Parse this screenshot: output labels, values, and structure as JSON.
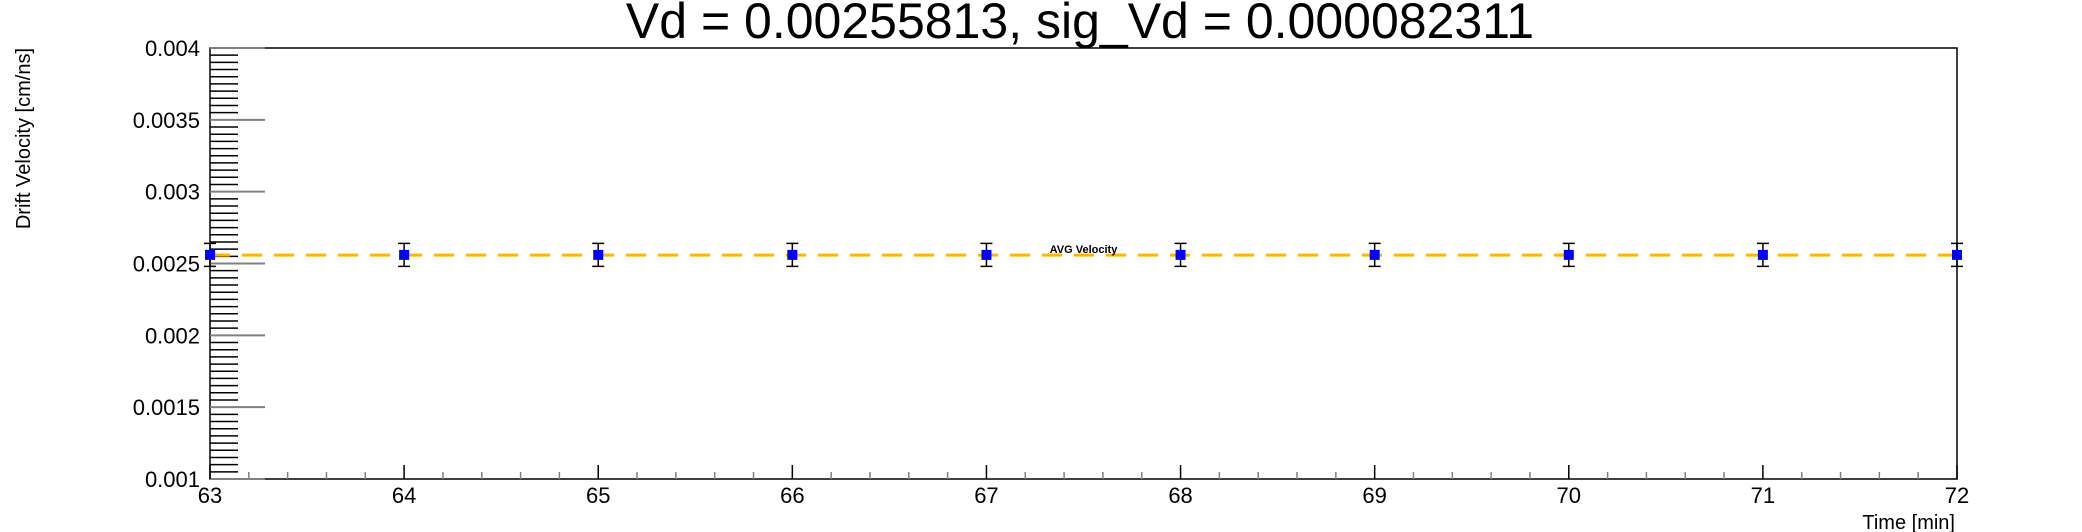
{
  "chart_data": {
    "type": "scatter",
    "title": "Vd = 0.00255813, sig_Vd = 0.000082311",
    "xlabel": "Time [min]",
    "ylabel": "Drift Velocity [cm/ns]",
    "xlim": [
      63,
      72
    ],
    "ylim": [
      0.001,
      0.004
    ],
    "x_ticks": [
      63,
      64,
      65,
      66,
      67,
      68,
      69,
      70,
      71,
      72
    ],
    "y_ticks": [
      "0.001",
      "0.0015",
      "0.002",
      "0.0025",
      "0.003",
      "0.0035",
      "0.004"
    ],
    "grid": false,
    "series": [
      {
        "x": [
          63,
          64,
          65,
          66,
          67,
          68,
          69,
          70,
          71,
          72
        ],
        "y": [
          0.00256,
          0.00256,
          0.00256,
          0.00256,
          0.00256,
          0.00256,
          0.00256,
          0.00256,
          0.00256,
          0.00256
        ],
        "yerr": [
          8e-05,
          8e-05,
          8e-05,
          8e-05,
          8e-05,
          8e-05,
          8e-05,
          8e-05,
          8e-05,
          8e-05
        ],
        "color": "#0000ff"
      }
    ],
    "reference_line": {
      "y": 0.00255813,
      "label": "AVG Velocity",
      "color": "#ffb400",
      "style": "dashed"
    }
  }
}
